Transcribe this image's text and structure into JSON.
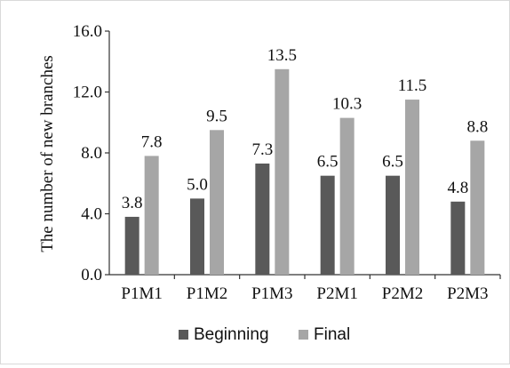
{
  "chart_data": {
    "type": "bar",
    "categories": [
      "P1M1",
      "P1M2",
      "P1M3",
      "P2M1",
      "P2M2",
      "P2M3"
    ],
    "series": [
      {
        "name": "Beginning",
        "values": [
          3.8,
          5.0,
          7.3,
          6.5,
          6.5,
          4.8
        ],
        "labels": [
          "3.8",
          "5.0",
          "7.3",
          "6.5",
          "6.5",
          "4.8"
        ],
        "color": "#595959"
      },
      {
        "name": "Final",
        "values": [
          7.8,
          9.5,
          13.5,
          10.3,
          11.5,
          8.8
        ],
        "labels": [
          "7.8",
          "9.5",
          "13.5",
          "10.3",
          "11.5",
          "8.8"
        ],
        "color": "#a6a6a6"
      }
    ],
    "ylabel": "The number of new branches",
    "xlabel": "",
    "ylim": [
      0,
      16
    ],
    "yticks": [
      "0.0",
      "4.0",
      "8.0",
      "12.0",
      "16.0"
    ],
    "grid": false,
    "legend": "bottom"
  }
}
